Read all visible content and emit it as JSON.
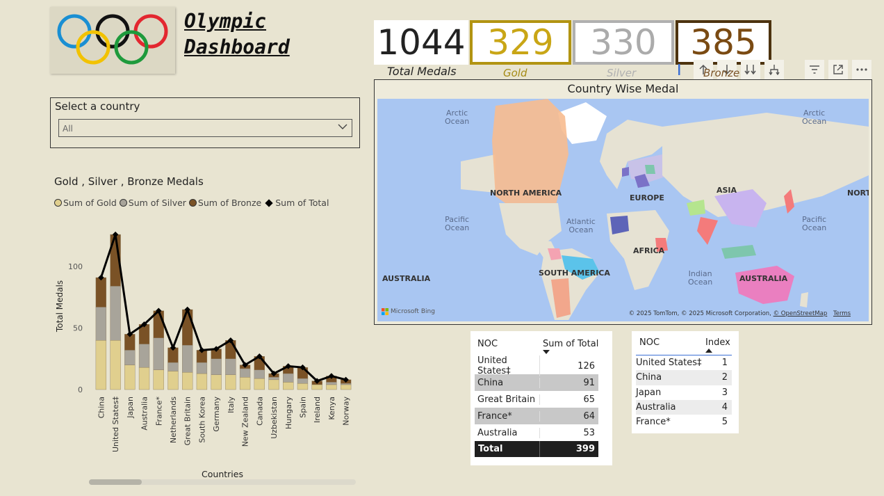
{
  "dashboard_title": "Olympic\nDashboard",
  "title_line1": "Olympic",
  "title_line2": "Dashboard",
  "kpis": {
    "total_value": "1044",
    "total_label": "Total Medals",
    "gold_value": "329",
    "gold_label": "Gold",
    "silver_value": "330",
    "silver_label": "Silver",
    "bronze_value": "385",
    "bronze_label": "Bronze"
  },
  "colors": {
    "gold": "#e0cf8e",
    "silver": "#a8a49a",
    "bronze": "#7a5226",
    "total": "#000000",
    "background": "#e8e4d1"
  },
  "toolbar": [
    "visual-focus-icon",
    "drill-up-icon",
    "drill-down-icon",
    "expand-all-icon",
    "expand-hierarchy-icon",
    "filter-icon",
    "focus-mode-icon",
    "more-options-icon"
  ],
  "slicer": {
    "label": "Select a country",
    "value": "All"
  },
  "chart_data": {
    "type": "bar",
    "title": "Gold , Silver , Bronze Medals",
    "xlabel": "Countries",
    "ylabel": "Total Medals",
    "ylim": [
      0,
      130
    ],
    "yticks": [
      "0",
      "50",
      "100"
    ],
    "categories": [
      "China",
      "United States‡",
      "Japan",
      "Australia",
      "France*",
      "Netherlands",
      "Great Britain",
      "South Korea",
      "Germany",
      "Italy",
      "New Zealand",
      "Canada",
      "Uzbekistan",
      "Hungary",
      "Spain",
      "Ireland",
      "Kenya",
      "Norway"
    ],
    "series": [
      {
        "name": "Sum of Gold",
        "values": [
          40,
          40,
          20,
          18,
          16,
          15,
          14,
          13,
          12,
          12,
          10,
          9,
          8,
          6,
          5,
          4,
          4,
          4
        ]
      },
      {
        "name": "Sum of Silver",
        "values": [
          27,
          44,
          12,
          19,
          26,
          7,
          22,
          9,
          13,
          13,
          7,
          7,
          2,
          7,
          4,
          0,
          2,
          1
        ]
      },
      {
        "name": "Sum of Bronze",
        "values": [
          24,
          42,
          13,
          16,
          22,
          12,
          29,
          10,
          8,
          15,
          3,
          11,
          3,
          6,
          9,
          3,
          5,
          3
        ]
      },
      {
        "name": "Sum of Total",
        "values": [
          91,
          126,
          45,
          53,
          64,
          34,
          65,
          32,
          33,
          40,
          20,
          27,
          13,
          19,
          18,
          7,
          11,
          8
        ]
      }
    ],
    "legend_position": "top-left"
  },
  "map": {
    "title": "Country Wise Medal",
    "labels": {
      "arctic_ocean": "Arctic\nOcean",
      "north_america": "NORTH AMERICA",
      "europe": "EUROPE",
      "asia": "ASIA",
      "north_cut": "NORT",
      "pacific_ocean": "Pacific\nOcean",
      "atlantic_ocean": "Atlantic\nOcean",
      "africa": "AFRICA",
      "south_america": "SOUTH AMERICA",
      "indian_ocean": "Indian\nOcean",
      "australia": "AUSTRALIA"
    },
    "bing": "Microsoft Bing",
    "attribution": "© 2025 TomTom, © 2025 Microsoft Corporation,",
    "osm": "© OpenStreetMap",
    "terms": "Terms"
  },
  "table1": {
    "headers": [
      "NOC",
      "Sum of Total"
    ],
    "rows": [
      [
        "United States‡",
        "126"
      ],
      [
        "China",
        "91"
      ],
      [
        "Great Britain",
        "65"
      ],
      [
        "France*",
        "64"
      ],
      [
        "Australia",
        "53"
      ]
    ],
    "total_label": "Total",
    "total_value": "399"
  },
  "table2": {
    "headers": [
      "NOC",
      "Index"
    ],
    "rows": [
      [
        "United States‡",
        "1"
      ],
      [
        "China",
        "2"
      ],
      [
        "Japan",
        "3"
      ],
      [
        "Australia",
        "4"
      ],
      [
        "France*",
        "5"
      ]
    ]
  }
}
